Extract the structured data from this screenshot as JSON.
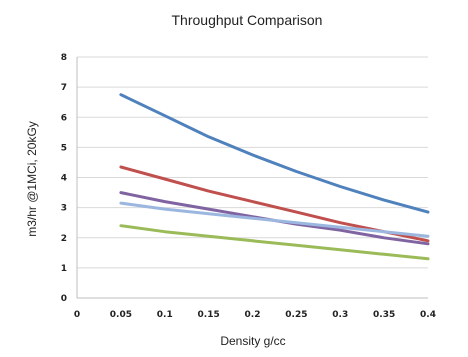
{
  "chart_data": {
    "type": "line",
    "title": "Throughput Comparison",
    "xlabel": "Density g/cc",
    "ylabel": "m3/hr @1MCi, 20kGy",
    "xlim": [
      0,
      0.4
    ],
    "ylim": [
      0,
      8
    ],
    "x_ticks": [
      "0",
      "0.05",
      "0.1",
      "0.15",
      "0.2",
      "0.25",
      "0.3",
      "0.35",
      "0.4"
    ],
    "y_ticks": [
      "0",
      "1",
      "2",
      "3",
      "4",
      "5",
      "6",
      "7",
      "8"
    ],
    "grid": true,
    "legend": "none",
    "x": [
      0.05,
      0.1,
      0.15,
      0.2,
      0.25,
      0.3,
      0.35,
      0.4
    ],
    "series": [
      {
        "color": "#4f81bd",
        "values": [
          6.75,
          6.05,
          5.35,
          4.75,
          4.2,
          3.7,
          3.25,
          2.85
        ]
      },
      {
        "color": "#c0504d",
        "values": [
          4.35,
          3.95,
          3.55,
          3.2,
          2.85,
          2.5,
          2.2,
          1.9
        ]
      },
      {
        "color": "#8064a2",
        "values": [
          3.5,
          3.2,
          2.95,
          2.7,
          2.45,
          2.25,
          2.0,
          1.8
        ]
      },
      {
        "color": "#9bb7e0",
        "values": [
          3.15,
          2.95,
          2.8,
          2.65,
          2.5,
          2.35,
          2.2,
          2.05
        ]
      },
      {
        "color": "#9bbb59",
        "values": [
          2.4,
          2.2,
          2.05,
          1.9,
          1.75,
          1.6,
          1.45,
          1.3
        ]
      }
    ]
  }
}
